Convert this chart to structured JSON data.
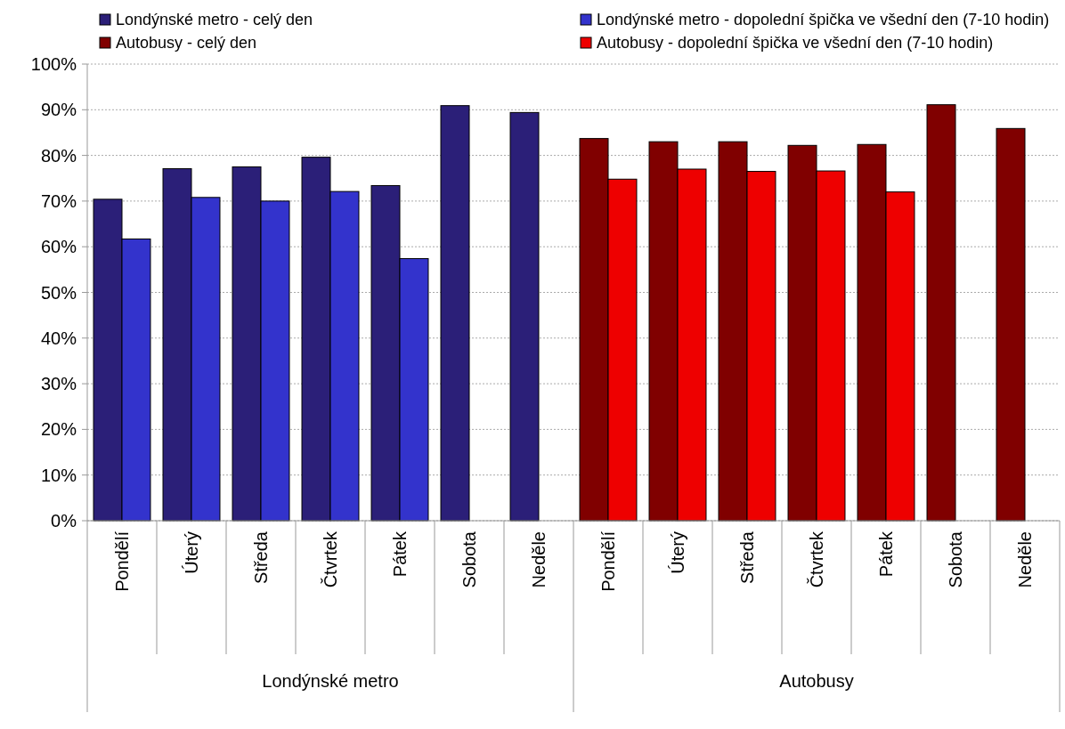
{
  "chart_data": {
    "type": "bar",
    "categories": [
      "Pondělí",
      "Úterý",
      "Středa",
      "Čtvrtek",
      "Pátek",
      "Sobota",
      "Neděle",
      "Pondělí",
      "Úterý",
      "Středa",
      "Čtvrtek",
      "Pátek",
      "Sobota",
      "Neděle"
    ],
    "series": [
      {
        "name": "Londýnské metro - celý den",
        "color": "#2b1f78",
        "values": [
          70.4,
          77.1,
          77.5,
          79.6,
          73.4,
          90.9,
          89.4,
          null,
          null,
          null,
          null,
          null,
          null,
          null
        ]
      },
      {
        "name": "Londýnské metro - dopolední špička ve všední den (7-10 hodin)",
        "color": "#3333cc",
        "values": [
          61.7,
          70.8,
          70.0,
          72.1,
          57.4,
          null,
          null,
          null,
          null,
          null,
          null,
          null,
          null,
          null
        ]
      },
      {
        "name": "Autobusy - celý den",
        "color": "#800000",
        "values": [
          null,
          null,
          null,
          null,
          null,
          null,
          null,
          83.7,
          83.0,
          83.0,
          82.2,
          82.4,
          91.1,
          85.9
        ]
      },
      {
        "name": "Autobusy - dopolední špička ve všední den (7-10 hodin)",
        "color": "#ee0000",
        "values": [
          null,
          null,
          null,
          null,
          null,
          null,
          null,
          74.8,
          77.0,
          76.5,
          76.6,
          72.0,
          null,
          null
        ]
      }
    ],
    "ylim": [
      0,
      100
    ],
    "yticks": [
      {
        "value": 0,
        "label": "0%"
      },
      {
        "value": 10,
        "label": "10%"
      },
      {
        "value": 20,
        "label": "20%"
      },
      {
        "value": 30,
        "label": "30%"
      },
      {
        "value": 40,
        "label": "40%"
      },
      {
        "value": 50,
        "label": "50%"
      },
      {
        "value": 60,
        "label": "60%"
      },
      {
        "value": 70,
        "label": "70%"
      },
      {
        "value": 80,
        "label": "80%"
      },
      {
        "value": 90,
        "label": "90%"
      },
      {
        "value": 100,
        "label": "100%"
      }
    ],
    "grid": "y",
    "legend": "top",
    "annotations": [
      "Londýnské metro",
      "Autobusy"
    ]
  }
}
